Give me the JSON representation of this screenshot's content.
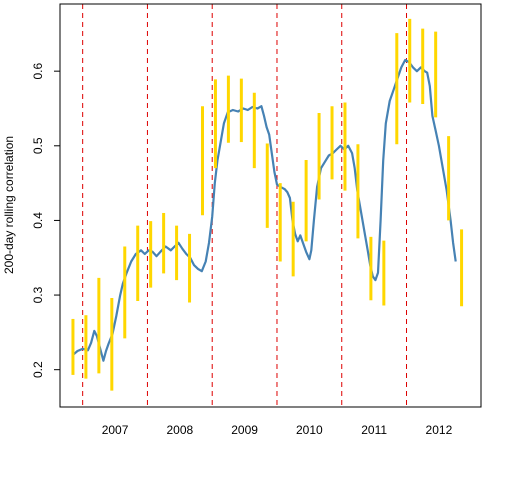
{
  "chart_data": {
    "type": "line",
    "title": "",
    "xlabel": "",
    "ylabel": "200-day rolling correlation",
    "xlim": [
      2006.15,
      2012.65
    ],
    "ylim": [
      0.15,
      0.69
    ],
    "y_ticks": [
      0.2,
      0.3,
      0.4,
      0.5,
      0.6
    ],
    "y_tick_labels": [
      "0.2",
      "0.3",
      "0.4",
      "0.5",
      "0.6"
    ],
    "x_tick_labels": [
      {
        "label": "2007",
        "x": 2007.0
      },
      {
        "label": "2008",
        "x": 2008.0
      },
      {
        "label": "2009",
        "x": 2009.0
      },
      {
        "label": "2010",
        "x": 2010.0
      },
      {
        "label": "2011",
        "x": 2011.0
      },
      {
        "label": "2012",
        "x": 2012.0
      }
    ],
    "vertical_reference_lines": [
      2006.5,
      2007.5,
      2008.5,
      2009.5,
      2010.5,
      2011.5
    ],
    "grid": false,
    "legend": "none",
    "colors": {
      "series_line": "#4682B4",
      "intervals": "#FFD700",
      "reference_lines": "#DD0000",
      "axes": "#000000"
    },
    "series": [
      {
        "values": [
          [
            2006.35,
            0.22
          ],
          [
            2006.42,
            0.225
          ],
          [
            2006.5,
            0.228
          ],
          [
            2006.58,
            0.226
          ],
          [
            2006.63,
            0.236
          ],
          [
            2006.68,
            0.252
          ],
          [
            2006.72,
            0.245
          ],
          [
            2006.78,
            0.225
          ],
          [
            2006.82,
            0.212
          ],
          [
            2006.86,
            0.225
          ],
          [
            2006.9,
            0.235
          ],
          [
            2006.96,
            0.248
          ],
          [
            2007.02,
            0.272
          ],
          [
            2007.08,
            0.3
          ],
          [
            2007.12,
            0.315
          ],
          [
            2007.18,
            0.33
          ],
          [
            2007.25,
            0.345
          ],
          [
            2007.32,
            0.355
          ],
          [
            2007.4,
            0.36
          ],
          [
            2007.46,
            0.355
          ],
          [
            2007.52,
            0.36
          ],
          [
            2007.58,
            0.358
          ],
          [
            2007.64,
            0.352
          ],
          [
            2007.7,
            0.358
          ],
          [
            2007.78,
            0.365
          ],
          [
            2007.86,
            0.36
          ],
          [
            2007.92,
            0.365
          ],
          [
            2007.98,
            0.37
          ],
          [
            2008.04,
            0.362
          ],
          [
            2008.1,
            0.355
          ],
          [
            2008.16,
            0.35
          ],
          [
            2008.22,
            0.34
          ],
          [
            2008.28,
            0.335
          ],
          [
            2008.34,
            0.332
          ],
          [
            2008.4,
            0.345
          ],
          [
            2008.45,
            0.37
          ],
          [
            2008.5,
            0.405
          ],
          [
            2008.54,
            0.45
          ],
          [
            2008.58,
            0.48
          ],
          [
            2008.62,
            0.5
          ],
          [
            2008.68,
            0.53
          ],
          [
            2008.74,
            0.545
          ],
          [
            2008.82,
            0.548
          ],
          [
            2008.9,
            0.546
          ],
          [
            2008.98,
            0.55
          ],
          [
            2009.05,
            0.548
          ],
          [
            2009.12,
            0.552
          ],
          [
            2009.2,
            0.55
          ],
          [
            2009.26,
            0.553
          ],
          [
            2009.3,
            0.54
          ],
          [
            2009.34,
            0.525
          ],
          [
            2009.38,
            0.515
          ],
          [
            2009.42,
            0.49
          ],
          [
            2009.46,
            0.465
          ],
          [
            2009.5,
            0.448
          ],
          [
            2009.55,
            0.445
          ],
          [
            2009.62,
            0.442
          ],
          [
            2009.66,
            0.438
          ],
          [
            2009.7,
            0.43
          ],
          [
            2009.74,
            0.4
          ],
          [
            2009.78,
            0.382
          ],
          [
            2009.82,
            0.372
          ],
          [
            2009.86,
            0.38
          ],
          [
            2009.9,
            0.37
          ],
          [
            2009.95,
            0.358
          ],
          [
            2010.0,
            0.348
          ],
          [
            2010.03,
            0.36
          ],
          [
            2010.07,
            0.4
          ],
          [
            2010.12,
            0.445
          ],
          [
            2010.18,
            0.47
          ],
          [
            2010.25,
            0.48
          ],
          [
            2010.3,
            0.487
          ],
          [
            2010.36,
            0.49
          ],
          [
            2010.42,
            0.495
          ],
          [
            2010.48,
            0.5
          ],
          [
            2010.54,
            0.495
          ],
          [
            2010.6,
            0.5
          ],
          [
            2010.66,
            0.49
          ],
          [
            2010.7,
            0.47
          ],
          [
            2010.74,
            0.44
          ],
          [
            2010.78,
            0.42
          ],
          [
            2010.82,
            0.4
          ],
          [
            2010.86,
            0.38
          ],
          [
            2010.9,
            0.36
          ],
          [
            2010.94,
            0.34
          ],
          [
            2010.98,
            0.325
          ],
          [
            2011.02,
            0.32
          ],
          [
            2011.06,
            0.33
          ],
          [
            2011.1,
            0.4
          ],
          [
            2011.14,
            0.48
          ],
          [
            2011.18,
            0.53
          ],
          [
            2011.24,
            0.56
          ],
          [
            2011.3,
            0.575
          ],
          [
            2011.36,
            0.59
          ],
          [
            2011.42,
            0.605
          ],
          [
            2011.48,
            0.615
          ],
          [
            2011.54,
            0.612
          ],
          [
            2011.6,
            0.605
          ],
          [
            2011.66,
            0.6
          ],
          [
            2011.72,
            0.605
          ],
          [
            2011.78,
            0.6
          ],
          [
            2011.82,
            0.598
          ],
          [
            2011.86,
            0.58
          ],
          [
            2011.9,
            0.54
          ],
          [
            2011.95,
            0.52
          ],
          [
            2012.0,
            0.5
          ],
          [
            2012.06,
            0.47
          ],
          [
            2012.12,
            0.44
          ],
          [
            2012.18,
            0.4
          ],
          [
            2012.22,
            0.37
          ],
          [
            2012.26,
            0.345
          ]
        ]
      }
    ],
    "intervals": [
      {
        "x": 2006.35,
        "low": 0.193,
        "high": 0.268
      },
      {
        "x": 2006.55,
        "low": 0.188,
        "high": 0.273
      },
      {
        "x": 2006.75,
        "low": 0.195,
        "high": 0.323
      },
      {
        "x": 2006.95,
        "low": 0.172,
        "high": 0.296
      },
      {
        "x": 2007.15,
        "low": 0.242,
        "high": 0.365
      },
      {
        "x": 2007.35,
        "low": 0.292,
        "high": 0.393
      },
      {
        "x": 2007.55,
        "low": 0.31,
        "high": 0.399
      },
      {
        "x": 2007.75,
        "low": 0.329,
        "high": 0.41
      },
      {
        "x": 2007.95,
        "low": 0.32,
        "high": 0.393
      },
      {
        "x": 2008.15,
        "low": 0.29,
        "high": 0.382
      },
      {
        "x": 2008.35,
        "low": 0.407,
        "high": 0.553
      },
      {
        "x": 2008.55,
        "low": 0.47,
        "high": 0.589
      },
      {
        "x": 2008.75,
        "low": 0.504,
        "high": 0.594
      },
      {
        "x": 2008.95,
        "low": 0.505,
        "high": 0.59
      },
      {
        "x": 2009.15,
        "low": 0.47,
        "high": 0.571
      },
      {
        "x": 2009.35,
        "low": 0.39,
        "high": 0.503
      },
      {
        "x": 2009.55,
        "low": 0.345,
        "high": 0.45
      },
      {
        "x": 2009.75,
        "low": 0.325,
        "high": 0.425
      },
      {
        "x": 2009.95,
        "low": 0.372,
        "high": 0.481
      },
      {
        "x": 2010.15,
        "low": 0.428,
        "high": 0.544
      },
      {
        "x": 2010.35,
        "low": 0.455,
        "high": 0.553
      },
      {
        "x": 2010.55,
        "low": 0.44,
        "high": 0.558
      },
      {
        "x": 2010.75,
        "low": 0.376,
        "high": 0.502
      },
      {
        "x": 2010.95,
        "low": 0.293,
        "high": 0.378
      },
      {
        "x": 2011.15,
        "low": 0.286,
        "high": 0.373
      },
      {
        "x": 2011.35,
        "low": 0.502,
        "high": 0.651
      },
      {
        "x": 2011.55,
        "low": 0.558,
        "high": 0.67
      },
      {
        "x": 2011.75,
        "low": 0.556,
        "high": 0.657
      },
      {
        "x": 2011.95,
        "low": 0.538,
        "high": 0.653
      },
      {
        "x": 2012.15,
        "low": 0.4,
        "high": 0.513
      },
      {
        "x": 2012.35,
        "low": 0.285,
        "high": 0.388
      }
    ]
  }
}
